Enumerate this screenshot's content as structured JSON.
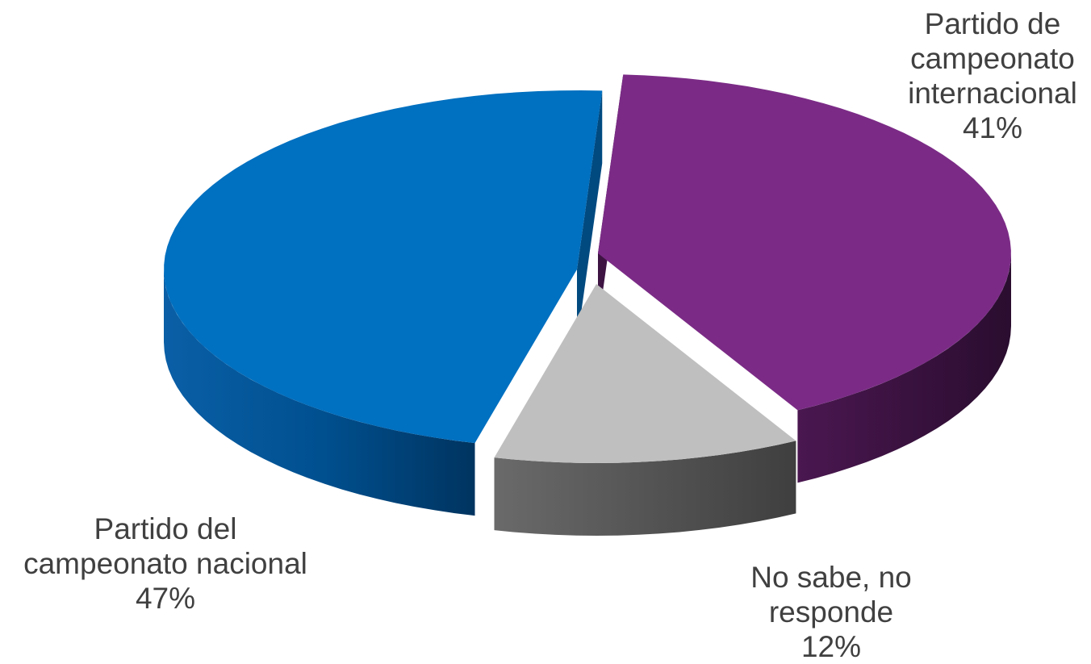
{
  "chart_data": {
    "type": "pie",
    "style": "3d-exploded",
    "slices": [
      {
        "name_lines": [
          "Partido de",
          "campeonato",
          "internacional"
        ],
        "value": 41,
        "value_label": "41%",
        "color": "#7B2B86",
        "side_color": "#3E1443"
      },
      {
        "name_lines": [
          "No sabe, no",
          "responde"
        ],
        "value": 12,
        "value_label": "12%",
        "color": "#BFBFBF",
        "side_color": "#555555"
      },
      {
        "name_lines": [
          "Partido del",
          "campeonato nacional"
        ],
        "value": 47,
        "value_label": "47%",
        "color": "#0070C0",
        "side_color": "#004A80"
      }
    ],
    "legend": "none",
    "grid": false
  }
}
